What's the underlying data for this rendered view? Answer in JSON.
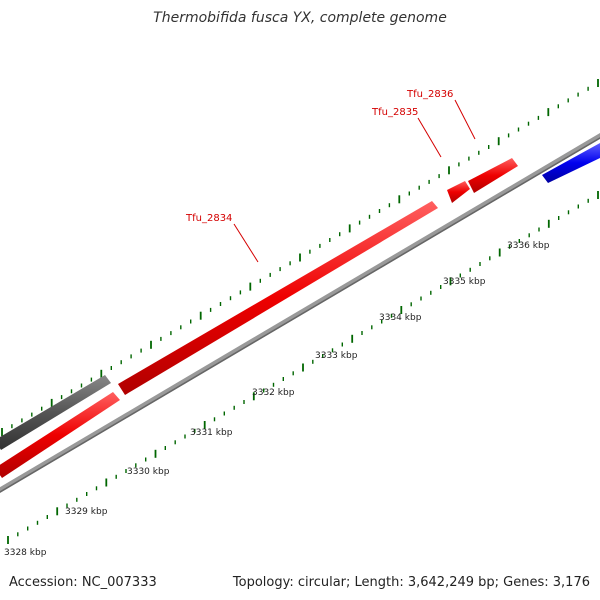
{
  "title": "Thermobifida fusca YX, complete genome",
  "footer": {
    "accession": "Accession: NC_007333",
    "summary": "Topology: circular; Length: 3,642,249 bp; Genes: 3,176"
  },
  "colors": {
    "forward_gene": "#ee0000",
    "reverse_gene": "#0000ee",
    "other_feature": "#555555",
    "backbone": "#888888",
    "ticks": "#006600",
    "gene_labels": "#d40000"
  },
  "scale_labels": [
    "3328 kbp",
    "3329 kbp",
    "3330 kbp",
    "3331 kbp",
    "3332 kbp",
    "3333 kbp",
    "3334 kbp",
    "3335 kbp",
    "3336 kbp"
  ],
  "gene_labels": [
    "Tfu_2834",
    "Tfu_2835",
    "Tfu_2836"
  ]
}
